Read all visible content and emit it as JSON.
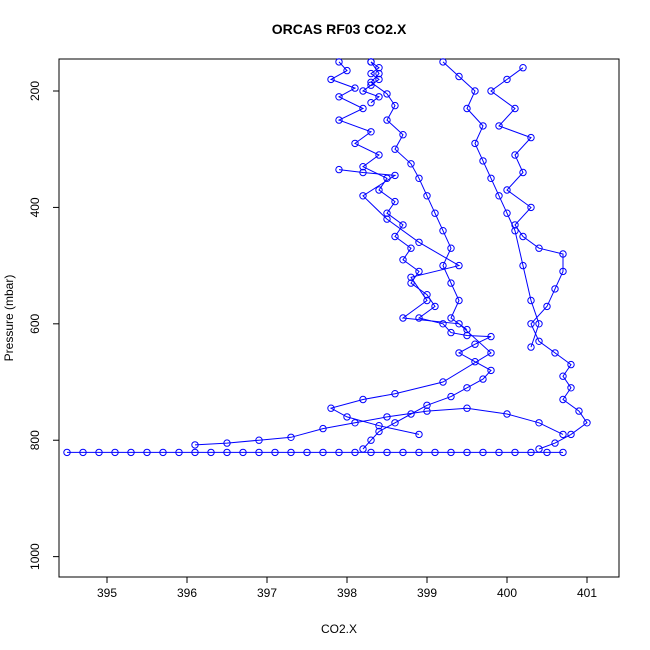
{
  "chart_data": {
    "type": "scatter",
    "title": "ORCAS RF03 CO2.X",
    "xlabel": "CO2.X",
    "ylabel": "Pressure (mbar)",
    "xlim": [
      394.4,
      401.4
    ],
    "ylim": [
      1035,
      145
    ],
    "y_reversed": true,
    "x_ticks": [
      395,
      396,
      397,
      398,
      399,
      400,
      401
    ],
    "y_ticks": [
      200,
      400,
      600,
      800,
      1000
    ],
    "marker": "open-circle",
    "connect_points": true,
    "grid": false,
    "legend": "none",
    "color": "#0000ff",
    "series": [
      {
        "segments": [
          {
            "name": "surface-level-leg",
            "points": [
              [
                394.5,
                821
              ],
              [
                394.7,
                821
              ],
              [
                394.9,
                821
              ],
              [
                395.1,
                821
              ],
              [
                395.3,
                821
              ],
              [
                395.5,
                821
              ],
              [
                395.7,
                821
              ],
              [
                395.9,
                821
              ],
              [
                396.1,
                821
              ],
              [
                396.3,
                821
              ],
              [
                396.5,
                821
              ],
              [
                396.7,
                821
              ],
              [
                396.9,
                821
              ],
              [
                397.1,
                821
              ],
              [
                397.3,
                821
              ],
              [
                397.5,
                821
              ],
              [
                397.7,
                821
              ],
              [
                397.9,
                821
              ],
              [
                398.1,
                821
              ],
              [
                398.3,
                821
              ],
              [
                398.5,
                821
              ],
              [
                398.7,
                821
              ],
              [
                398.9,
                821
              ],
              [
                399.1,
                821
              ],
              [
                399.3,
                821
              ],
              [
                399.5,
                821
              ],
              [
                399.7,
                821
              ],
              [
                399.9,
                821
              ],
              [
                400.1,
                821
              ],
              [
                400.3,
                821
              ],
              [
                400.5,
                821
              ],
              [
                400.7,
                821
              ]
            ]
          },
          {
            "name": "main-profile",
            "points": [
              [
                397.9,
                150
              ],
              [
                398.0,
                165
              ],
              [
                397.8,
                180
              ],
              [
                398.1,
                195
              ],
              [
                397.9,
                210
              ],
              [
                398.2,
                230
              ],
              [
                397.9,
                250
              ],
              [
                398.3,
                270
              ],
              [
                398.1,
                290
              ],
              [
                398.4,
                310
              ],
              [
                398.2,
                330
              ],
              [
                398.5,
                350
              ],
              [
                398.4,
                370
              ],
              [
                398.6,
                390
              ],
              [
                398.5,
                410
              ],
              [
                398.7,
                430
              ],
              [
                398.6,
                450
              ],
              [
                398.8,
                470
              ],
              [
                398.7,
                490
              ],
              [
                398.9,
                510
              ],
              [
                398.8,
                530
              ],
              [
                399.0,
                550
              ],
              [
                399.1,
                570
              ],
              [
                398.9,
                590
              ],
              [
                399.2,
                600
              ],
              [
                399.3,
                615
              ],
              [
                399.5,
                620
              ],
              [
                399.8,
                622
              ],
              [
                399.6,
                635
              ],
              [
                399.4,
                650
              ],
              [
                399.6,
                665
              ],
              [
                399.8,
                680
              ],
              [
                399.7,
                695
              ],
              [
                399.5,
                710
              ],
              [
                399.3,
                725
              ],
              [
                399.0,
                740
              ],
              [
                398.8,
                755
              ],
              [
                398.6,
                770
              ],
              [
                398.4,
                785
              ],
              [
                398.3,
                800
              ],
              [
                398.2,
                815
              ]
            ]
          },
          {
            "name": "profile-upper-b",
            "points": [
              [
                398.3,
                150
              ],
              [
                398.4,
                170
              ],
              [
                398.3,
                185
              ],
              [
                398.5,
                205
              ],
              [
                398.6,
                225
              ],
              [
                398.5,
                250
              ],
              [
                398.7,
                275
              ],
              [
                398.6,
                300
              ],
              [
                398.8,
                325
              ],
              [
                398.9,
                350
              ],
              [
                399.0,
                380
              ],
              [
                399.1,
                410
              ],
              [
                399.2,
                440
              ],
              [
                399.3,
                470
              ],
              [
                399.2,
                500
              ],
              [
                399.3,
                530
              ],
              [
                399.4,
                560
              ],
              [
                399.3,
                590
              ],
              [
                399.5,
                610
              ]
            ]
          },
          {
            "name": "scattered-middle",
            "points": [
              [
                397.9,
                335
              ],
              [
                398.2,
                340
              ],
              [
                398.6,
                345
              ],
              [
                398.2,
                380
              ],
              [
                398.5,
                420
              ],
              [
                398.9,
                460
              ],
              [
                399.4,
                500
              ],
              [
                398.8,
                520
              ],
              [
                399.0,
                560
              ],
              [
                398.7,
                590
              ],
              [
                399.4,
                600
              ],
              [
                399.8,
                650
              ],
              [
                399.2,
                700
              ],
              [
                398.6,
                720
              ],
              [
                398.2,
                730
              ],
              [
                397.8,
                745
              ],
              [
                398.0,
                760
              ],
              [
                398.4,
                775
              ],
              [
                398.9,
                790
              ]
            ]
          },
          {
            "name": "right-profile",
            "points": [
              [
                400.2,
                160
              ],
              [
                400.0,
                180
              ],
              [
                399.8,
                200
              ],
              [
                400.1,
                230
              ],
              [
                399.9,
                260
              ],
              [
                400.3,
                280
              ],
              [
                400.1,
                310
              ],
              [
                400.2,
                340
              ],
              [
                400.0,
                370
              ],
              [
                400.3,
                400
              ],
              [
                400.1,
                430
              ],
              [
                400.2,
                450
              ],
              [
                400.4,
                470
              ],
              [
                400.7,
                480
              ],
              [
                400.7,
                510
              ],
              [
                400.6,
                540
              ],
              [
                400.5,
                570
              ],
              [
                400.3,
                600
              ],
              [
                400.4,
                630
              ],
              [
                400.6,
                650
              ],
              [
                400.8,
                670
              ],
              [
                400.7,
                690
              ],
              [
                400.8,
                710
              ],
              [
                400.7,
                730
              ],
              [
                400.9,
                750
              ],
              [
                401.0,
                770
              ],
              [
                400.8,
                790
              ],
              [
                400.6,
                805
              ],
              [
                400.4,
                815
              ]
            ]
          },
          {
            "name": "inner-right-profile",
            "points": [
              [
                399.2,
                150
              ],
              [
                399.4,
                175
              ],
              [
                399.6,
                200
              ],
              [
                399.5,
                230
              ],
              [
                399.7,
                260
              ],
              [
                399.6,
                290
              ],
              [
                399.7,
                320
              ],
              [
                399.8,
                350
              ],
              [
                399.9,
                380
              ],
              [
                400.0,
                410
              ],
              [
                400.1,
                440
              ],
              [
                400.2,
                500
              ],
              [
                400.3,
                560
              ],
              [
                400.4,
                600
              ],
              [
                400.3,
                640
              ]
            ]
          },
          {
            "name": "left-excursions",
            "points": [
              [
                396.1,
                808
              ],
              [
                396.5,
                805
              ],
              [
                396.9,
                800
              ],
              [
                397.3,
                795
              ],
              [
                397.7,
                780
              ],
              [
                398.1,
                770
              ],
              [
                398.5,
                760
              ],
              [
                399.0,
                750
              ],
              [
                399.5,
                745
              ],
              [
                400.0,
                755
              ],
              [
                400.4,
                770
              ],
              [
                400.7,
                790
              ]
            ]
          },
          {
            "name": "upper-left-cluster",
            "points": [
              [
                398.3,
                150
              ],
              [
                398.4,
                160
              ],
              [
                398.3,
                170
              ],
              [
                398.4,
                180
              ],
              [
                398.3,
                190
              ],
              [
                398.2,
                200
              ],
              [
                398.4,
                210
              ],
              [
                398.3,
                220
              ]
            ]
          }
        ]
      }
    ]
  }
}
